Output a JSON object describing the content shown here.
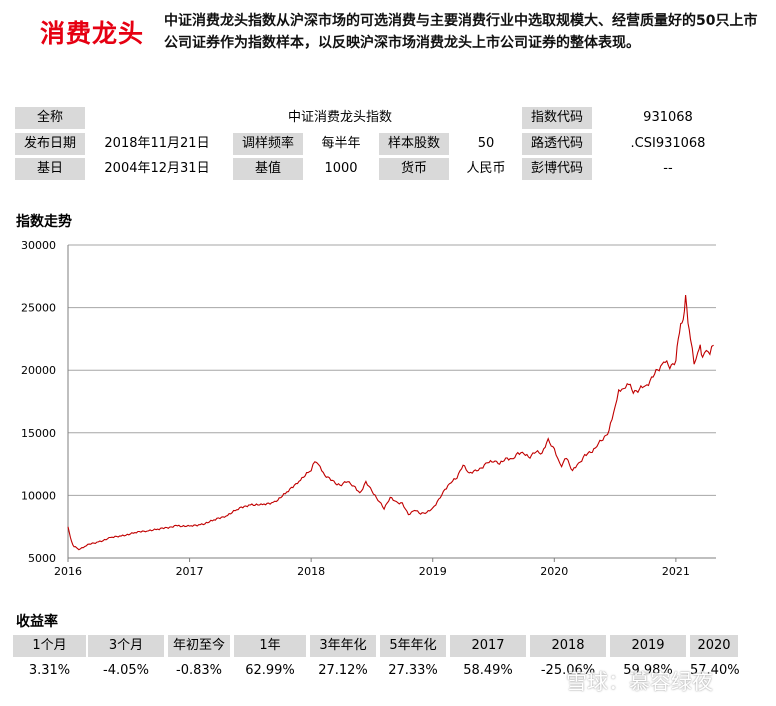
{
  "title": "消费龙头",
  "description": "中证消费龙头指数从沪深市场的可选消费与主要消费行业中选取规模大、经营质量好的50只上市公司证券作为指数样本，以反映沪深市场消费龙头上市公司证券的整体表现。",
  "info": {
    "full_name_label": "全称",
    "full_name": "中证消费龙头指数",
    "code_label": "指数代码",
    "code": "931068",
    "release_label": "发布日期",
    "release": "2018年11月21日",
    "rebalance_label": "调样频率",
    "rebalance": "每半年",
    "count_label": "样本股数",
    "count": "50",
    "reuters_label": "路透代码",
    "reuters": ".CSI931068",
    "base_date_label": "基日",
    "base_date": "2004年12月31日",
    "base_value_label": "基值",
    "base_value": "1000",
    "currency_label": "货币",
    "currency": "人民币",
    "bloomberg_label": "彭博代码",
    "bloomberg": "--"
  },
  "trend_title": "指数走势",
  "returns_title": "收益率",
  "returns": {
    "headers": [
      "1个月",
      "3个月",
      "年初至今",
      "1年",
      "3年年化",
      "5年年化",
      "2017",
      "2018",
      "2019",
      "2020"
    ],
    "values": [
      "3.31%",
      "-4.05%",
      "-0.83%",
      "62.99%",
      "27.12%",
      "27.33%",
      "58.49%",
      "-25.06%",
      "59.98%",
      "57.40%"
    ]
  },
  "watermark": "雪球：慕容绿夜",
  "chart_data": {
    "type": "line",
    "title": "指数走势",
    "xlabel": "",
    "ylabel": "",
    "color": "#c00000",
    "ylim": [
      5000,
      30000
    ],
    "yticks": [
      5000,
      10000,
      15000,
      20000,
      25000,
      30000
    ],
    "xlim": [
      2016.0,
      2021.33
    ],
    "xticks": [
      2016,
      2017,
      2018,
      2019,
      2020,
      2021
    ],
    "x_tick_labels": [
      "2016",
      "2017",
      "2018",
      "2019",
      "2020",
      "2021"
    ],
    "series": [
      {
        "name": "中证消费龙头指数",
        "x": [
          2016.0,
          2016.02,
          2016.04,
          2016.06,
          2016.09,
          2016.15,
          2016.25,
          2016.35,
          2016.45,
          2016.55,
          2016.65,
          2016.75,
          2016.9,
          2017.0,
          2017.1,
          2017.2,
          2017.3,
          2017.4,
          2017.5,
          2017.6,
          2017.7,
          2017.8,
          2017.9,
          2018.0,
          2018.03,
          2018.06,
          2018.1,
          2018.15,
          2018.2,
          2018.25,
          2018.3,
          2018.35,
          2018.4,
          2018.45,
          2018.5,
          2018.55,
          2018.6,
          2018.65,
          2018.7,
          2018.75,
          2018.8,
          2018.85,
          2018.9,
          2018.95,
          2019.0,
          2019.05,
          2019.1,
          2019.15,
          2019.2,
          2019.25,
          2019.3,
          2019.35,
          2019.4,
          2019.45,
          2019.5,
          2019.55,
          2019.6,
          2019.65,
          2019.7,
          2019.75,
          2019.8,
          2019.85,
          2019.9,
          2019.95,
          2020.0,
          2020.03,
          2020.06,
          2020.1,
          2020.15,
          2020.2,
          2020.25,
          2020.3,
          2020.35,
          2020.4,
          2020.45,
          2020.5,
          2020.53,
          2020.57,
          2020.6,
          2020.65,
          2020.7,
          2020.75,
          2020.8,
          2020.85,
          2020.9,
          2020.95,
          2021.0,
          2021.02,
          2021.04,
          2021.06,
          2021.08,
          2021.1,
          2021.12,
          2021.15,
          2021.18,
          2021.2,
          2021.22,
          2021.25,
          2021.28,
          2021.31
        ],
        "values": [
          7500,
          6600,
          6000,
          5900,
          5700,
          6000,
          6300,
          6600,
          6800,
          7000,
          7200,
          7300,
          7600,
          7500,
          7700,
          8000,
          8400,
          8900,
          9300,
          9200,
          9500,
          10200,
          11200,
          12000,
          12800,
          12400,
          11800,
          11300,
          11000,
          10800,
          11200,
          10700,
          10200,
          11000,
          10400,
          9600,
          9000,
          9800,
          9500,
          9300,
          8500,
          8800,
          8600,
          8600,
          9000,
          9600,
          10500,
          11000,
          11500,
          12400,
          11800,
          11900,
          12200,
          12600,
          12800,
          12500,
          13000,
          12800,
          13400,
          13300,
          13100,
          13500,
          13400,
          14400,
          13700,
          12900,
          12400,
          13000,
          12000,
          12500,
          13200,
          13400,
          14000,
          14500,
          15200,
          17000,
          18300,
          18500,
          19000,
          18300,
          18500,
          18700,
          19300,
          20000,
          20700,
          20300,
          20800,
          22500,
          23500,
          24000,
          26000,
          24000,
          22500,
          20500,
          21200,
          22000,
          21000,
          21800,
          21300,
          22000
        ]
      }
    ]
  }
}
